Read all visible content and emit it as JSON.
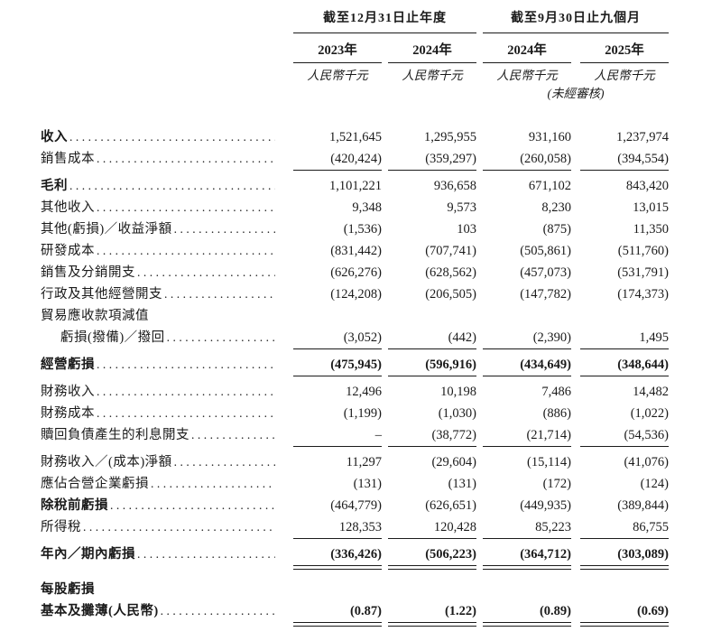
{
  "table": {
    "groups": [
      {
        "title": "截至12月31日止年度"
      },
      {
        "title": "截至9月30日止九個月"
      }
    ],
    "col_years": [
      "2023年",
      "2024年",
      "2024年",
      "2025年"
    ],
    "currency_unit": "人民幣千元",
    "unaudited_note": "(未經審核)",
    "rows": [
      {
        "label": "收入",
        "values": [
          "1,521,645",
          "1,295,955",
          "931,160",
          "1,237,974"
        ]
      },
      {
        "label": "銷售成本",
        "values": [
          "(420,424)",
          "(359,297)",
          "(260,058)",
          "(394,554)"
        ]
      },
      {
        "label": "毛利",
        "values": [
          "1,101,221",
          "936,658",
          "671,102",
          "843,420"
        ]
      },
      {
        "label": "其他收入",
        "values": [
          "9,348",
          "9,573",
          "8,230",
          "13,015"
        ]
      },
      {
        "label": "其他(虧損)／收益淨額",
        "values": [
          "(1,536)",
          "103",
          "(875)",
          "11,350"
        ]
      },
      {
        "label": "研發成本",
        "values": [
          "(831,442)",
          "(707,741)",
          "(505,861)",
          "(511,760)"
        ]
      },
      {
        "label": "銷售及分銷開支",
        "values": [
          "(626,276)",
          "(628,562)",
          "(457,073)",
          "(531,791)"
        ]
      },
      {
        "label": "行政及其他經營開支",
        "values": [
          "(124,208)",
          "(206,505)",
          "(147,782)",
          "(174,373)"
        ]
      },
      {
        "label": "貿易應收款項減值",
        "values": [
          "",
          "",
          "",
          ""
        ]
      },
      {
        "label": "虧損(撥備)／撥回",
        "values": [
          "(3,052)",
          "(442)",
          "(2,390)",
          "1,495"
        ]
      },
      {
        "label": "經營虧損",
        "values": [
          "(475,945)",
          "(596,916)",
          "(434,649)",
          "(348,644)"
        ]
      },
      {
        "label": "財務收入",
        "values": [
          "12,496",
          "10,198",
          "7,486",
          "14,482"
        ]
      },
      {
        "label": "財務成本",
        "values": [
          "(1,199)",
          "(1,030)",
          "(886)",
          "(1,022)"
        ]
      },
      {
        "label": "贖回負債產生的利息開支",
        "values": [
          "–",
          "(38,772)",
          "(21,714)",
          "(54,536)"
        ]
      },
      {
        "label": "財務收入／(成本)淨額",
        "values": [
          "11,297",
          "(29,604)",
          "(15,114)",
          "(41,076)"
        ]
      },
      {
        "label": "應佔合營企業虧損",
        "values": [
          "(131)",
          "(131)",
          "(172)",
          "(124)"
        ]
      },
      {
        "label": "除稅前虧損",
        "values": [
          "(464,779)",
          "(626,651)",
          "(449,935)",
          "(389,844)"
        ]
      },
      {
        "label": "所得稅",
        "values": [
          "128,353",
          "120,428",
          "85,223",
          "86,755"
        ]
      },
      {
        "label": "年內／期內虧損",
        "values": [
          "(336,426)",
          "(506,223)",
          "(364,712)",
          "(303,089)"
        ]
      },
      {
        "label": "每股虧損",
        "values": [
          "",
          "",
          "",
          ""
        ]
      },
      {
        "label": "基本及攤薄(人民幣)",
        "values": [
          "(0.87)",
          "(1.22)",
          "(0.89)",
          "(0.69)"
        ]
      }
    ]
  }
}
